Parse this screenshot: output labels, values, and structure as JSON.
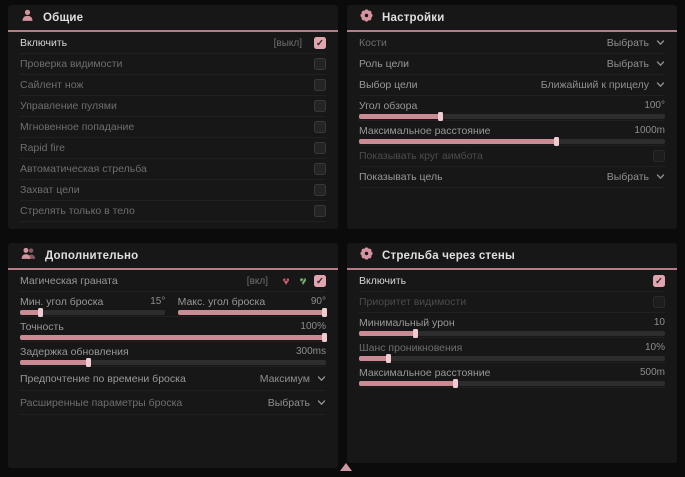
{
  "theme": {
    "accent_pink": "#d593a0",
    "slider_fill": "#cb8b95",
    "checkbox_checked": "#e0a5ae",
    "header_underline": "#b87c86",
    "panel_bg": "#171717",
    "page_bg": "#0b0b0b"
  },
  "panels": [
    {
      "id": "general",
      "title": "Общие",
      "icon": "person-icon",
      "rows": [
        {
          "type": "checkbox",
          "label": "Включить",
          "tone": "bright",
          "tag": "[выкл]",
          "checked": true
        },
        {
          "type": "checkbox",
          "label": "Проверка видимости",
          "tone": "muted",
          "checked": false
        },
        {
          "type": "checkbox",
          "label": "Сайлент нож",
          "tone": "muted",
          "checked": false
        },
        {
          "type": "checkbox",
          "label": "Управление пулями",
          "tone": "muted",
          "checked": false
        },
        {
          "type": "checkbox",
          "label": "Мгновенное попадание",
          "tone": "muted",
          "checked": false
        },
        {
          "type": "checkbox",
          "label": "Rapid fire",
          "tone": "muted",
          "checked": false
        },
        {
          "type": "checkbox",
          "label": "Автоматическая стрельба",
          "tone": "muted",
          "checked": false
        },
        {
          "type": "checkbox",
          "label": "Захват цели",
          "tone": "muted",
          "checked": false
        },
        {
          "type": "checkbox",
          "label": "Стрелять только в тело",
          "tone": "muted",
          "checked": false
        }
      ]
    },
    {
      "id": "settings",
      "title": "Настройки",
      "icon": "gear-icon",
      "rows": [
        {
          "type": "dropdown",
          "label": "Кости",
          "tone": "muted",
          "value": "Выбрать"
        },
        {
          "type": "dropdown",
          "label": "Роль цели",
          "tone": "normal",
          "value": "Выбрать"
        },
        {
          "type": "dropdown",
          "label": "Выбор цели",
          "tone": "normal",
          "value": "Ближайший к прицелу"
        },
        {
          "type": "slider",
          "label": "Угол обзора",
          "tone": "normal",
          "value": "100°",
          "fill": 26
        },
        {
          "type": "slider",
          "label": "Максимальное расстояние",
          "tone": "normal",
          "value": "1000m",
          "fill": 65
        },
        {
          "type": "checkbox",
          "label": "Показывать круг аимбота",
          "tone": "dim",
          "checked": false,
          "disabled": true
        },
        {
          "type": "dropdown",
          "label": "Показывать цель",
          "tone": "normal",
          "value": "Выбрать"
        }
      ]
    },
    {
      "id": "additional",
      "title": "Дополнительно",
      "icon": "people-icon",
      "rows": [
        {
          "type": "checkbox",
          "label": "Магическая граната",
          "tone": "normal",
          "tag": "[вкл]",
          "icons": [
            "broken-heart-icon",
            "heart-check-icon"
          ],
          "checked": true
        },
        {
          "type": "sliderpair",
          "sliders": [
            {
              "label": "Мин. угол броска",
              "tone": "normal",
              "value": "15°",
              "fill": 13
            },
            {
              "label": "Макс. угол броска",
              "tone": "normal",
              "value": "90°",
              "fill": 100
            }
          ]
        },
        {
          "type": "slider",
          "label": "Точность",
          "tone": "normal",
          "value": "100%",
          "fill": 100
        },
        {
          "type": "slider",
          "label": "Задержка обновления",
          "tone": "normal",
          "value": "300ms",
          "fill": 22
        },
        {
          "type": "dropdown",
          "label": "Предпочтение по времени броска",
          "tone": "normal",
          "value": "Максимум",
          "tall": true
        },
        {
          "type": "dropdown",
          "label": "Расширенные параметры броска",
          "tone": "muted",
          "value": "Выбрать",
          "tall": true
        }
      ]
    },
    {
      "id": "wallbang",
      "title": "Стрельба через стены",
      "icon": "gear-icon",
      "rows": [
        {
          "type": "checkbox",
          "label": "Включить",
          "tone": "bright",
          "checked": true
        },
        {
          "type": "checkbox",
          "label": "Приоритет видимости",
          "tone": "dim",
          "checked": false,
          "disabled": true
        },
        {
          "type": "slider",
          "label": "Минимальный урон",
          "tone": "normal",
          "value": "10",
          "fill": 18
        },
        {
          "type": "slider",
          "label": "Шанс проникновения",
          "tone": "muted",
          "value": "10%",
          "fill": 9
        },
        {
          "type": "slider",
          "label": "Максимальное расстояние",
          "tone": "normal",
          "value": "500m",
          "fill": 31
        }
      ]
    }
  ],
  "footer": {
    "indicator_icon": "scroll-indicator-icon"
  }
}
